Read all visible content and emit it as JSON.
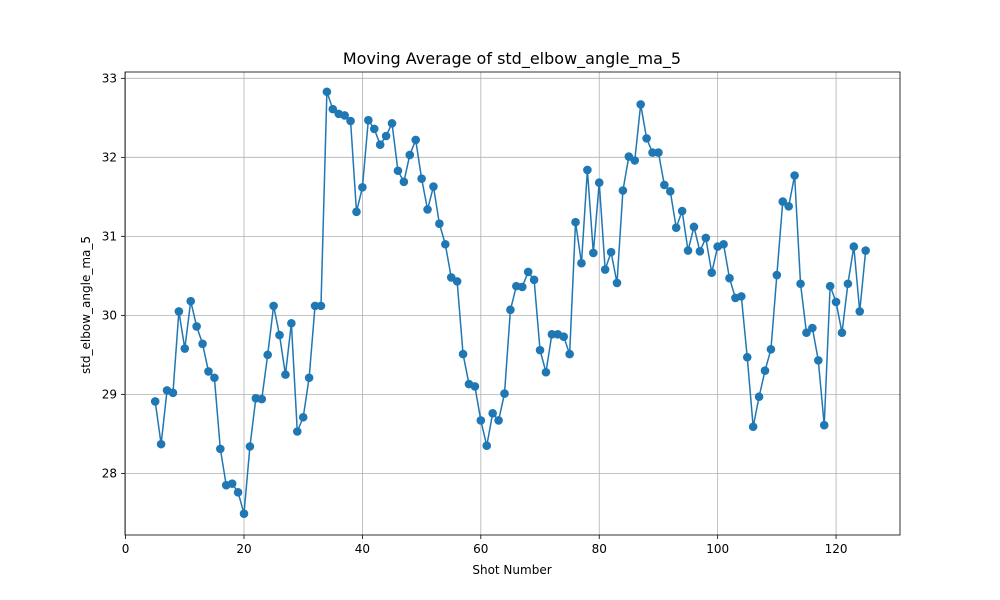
{
  "chart_data": {
    "type": "line",
    "title": "Moving Average of std_elbow_angle_ma_5",
    "xlabel": "Shot Number",
    "ylabel": "std_elbow_angle_ma_5",
    "xlim": [
      -0.1,
      130.8
    ],
    "ylim": [
      27.22,
      33.08
    ],
    "xticks": [
      0,
      20,
      40,
      60,
      80,
      100,
      120
    ],
    "yticks": [
      28,
      29,
      30,
      31,
      32,
      33
    ],
    "grid": true,
    "colors": {
      "line": "#1f77b4",
      "marker": "#1f77b4",
      "grid": "#b0b0b0"
    },
    "series": [
      {
        "name": "std_elbow_angle_ma_5",
        "x": [
          5,
          6,
          7,
          8,
          9,
          10,
          11,
          12,
          13,
          14,
          15,
          16,
          17,
          18,
          19,
          20,
          21,
          22,
          23,
          24,
          25,
          26,
          27,
          28,
          29,
          30,
          31,
          32,
          33,
          34,
          35,
          36,
          37,
          38,
          39,
          40,
          41,
          42,
          43,
          44,
          45,
          46,
          47,
          48,
          49,
          50,
          51,
          52,
          53,
          54,
          55,
          56,
          57,
          58,
          59,
          60,
          61,
          62,
          63,
          64,
          65,
          66,
          67,
          68,
          69,
          70,
          71,
          72,
          73,
          74,
          75,
          76,
          77,
          78,
          79,
          80,
          81,
          82,
          83,
          84,
          85,
          86,
          87,
          88,
          89,
          90,
          91,
          92,
          93,
          94,
          95,
          96,
          97,
          98,
          99,
          100,
          101,
          102,
          103,
          104,
          105,
          106,
          107,
          108,
          109,
          110,
          111,
          112,
          113,
          114,
          115,
          116,
          117,
          118,
          119,
          120,
          121,
          122,
          123,
          124,
          125
        ],
        "values": [
          28.91,
          28.37,
          29.05,
          29.02,
          30.05,
          29.58,
          30.18,
          29.86,
          29.64,
          29.29,
          29.21,
          28.31,
          27.85,
          27.87,
          27.76,
          27.49,
          28.34,
          28.95,
          28.94,
          29.5,
          30.12,
          29.75,
          29.25,
          29.9,
          28.53,
          28.71,
          29.21,
          30.12,
          30.12,
          32.83,
          32.61,
          32.55,
          32.53,
          32.46,
          31.31,
          31.62,
          32.47,
          32.36,
          32.16,
          32.27,
          32.43,
          31.83,
          31.69,
          32.03,
          32.22,
          31.73,
          31.34,
          31.63,
          31.16,
          30.9,
          30.48,
          30.43,
          29.51,
          29.13,
          29.1,
          28.67,
          28.35,
          28.76,
          28.67,
          29.01,
          30.07,
          30.37,
          30.36,
          30.55,
          30.45,
          29.56,
          29.28,
          29.76,
          29.76,
          29.73,
          29.51,
          31.18,
          30.66,
          31.84,
          30.79,
          31.68,
          30.58,
          30.8,
          30.41,
          31.58,
          32.01,
          31.96,
          32.67,
          32.24,
          32.06,
          32.06,
          31.65,
          31.57,
          31.11,
          31.32,
          30.82,
          31.12,
          30.81,
          30.98,
          30.54,
          30.87,
          30.9,
          30.47,
          30.22,
          30.24,
          29.47,
          28.59,
          28.97,
          29.3,
          29.57,
          30.51,
          31.44,
          31.38,
          31.77,
          30.4,
          29.78,
          29.84,
          29.43,
          28.61,
          30.37,
          30.17,
          29.78,
          30.4,
          30.87,
          30.05,
          30.82
        ]
      }
    ]
  }
}
